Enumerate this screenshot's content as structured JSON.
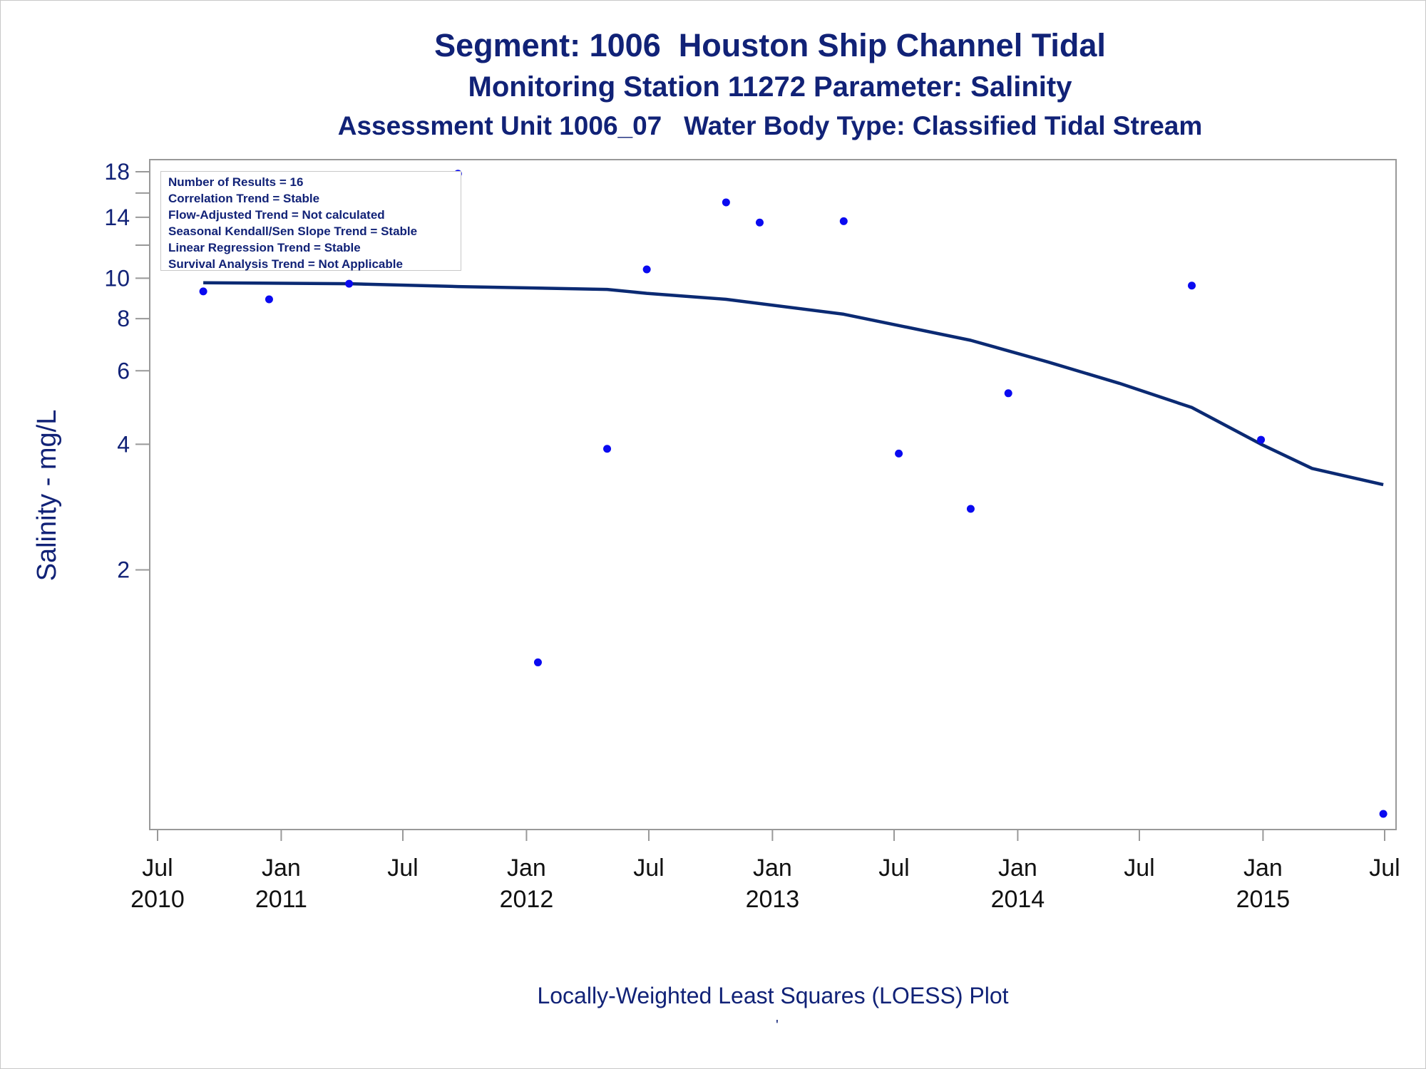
{
  "titles": {
    "line1": "Segment: 1006  Houston Ship Channel Tidal",
    "line2": "Monitoring Station 11272 Parameter: Salinity",
    "line3": "Assessment Unit 1006_07   Water Body Type: Classified Tidal Stream"
  },
  "stats_box": {
    "results": "Number of Results = 16",
    "correlation": "Correlation Trend = Stable",
    "flow_adjusted": "Flow-Adjusted Trend = Not calculated",
    "seasonal_kendall": "Seasonal Kendall/Sen Slope Trend = Stable",
    "linear_regression": "Linear Regression Trend = Stable",
    "survival": "Survival Analysis Trend = Not Applicable"
  },
  "footnote": "Locally-Weighted Least Squares (LOESS) Plot",
  "footnote_mark": "'",
  "chart_data": {
    "type": "scatter",
    "ylabel": "Salinity - mg/L",
    "yscale": "log",
    "ylim": [
      0.5,
      18.5
    ],
    "yticks": [
      2,
      4,
      6,
      8,
      10,
      14,
      18
    ],
    "yminor_ticks": [
      12,
      16
    ],
    "xlim": [
      "2010-07-01",
      "2015-07-01"
    ],
    "xticks": [
      {
        "date": "2010-07-01",
        "month": "Jul",
        "year": "2010"
      },
      {
        "date": "2011-01-01",
        "month": "Jan",
        "year": "2011"
      },
      {
        "date": "2011-07-01",
        "month": "Jul",
        "year": ""
      },
      {
        "date": "2012-01-01",
        "month": "Jan",
        "year": "2012"
      },
      {
        "date": "2012-07-01",
        "month": "Jul",
        "year": ""
      },
      {
        "date": "2013-01-01",
        "month": "Jan",
        "year": "2013"
      },
      {
        "date": "2013-07-01",
        "month": "Jul",
        "year": ""
      },
      {
        "date": "2014-01-01",
        "month": "Jan",
        "year": "2014"
      },
      {
        "date": "2014-07-01",
        "month": "Jul",
        "year": ""
      },
      {
        "date": "2015-01-01",
        "month": "Jan",
        "year": "2015"
      },
      {
        "date": "2015-07-01",
        "month": "Jul",
        "year": ""
      }
    ],
    "points": [
      {
        "x": "2010-09-07",
        "y": 9.3
      },
      {
        "x": "2010-12-14",
        "y": 8.9
      },
      {
        "x": "2011-04-12",
        "y": 9.7
      },
      {
        "x": "2011-09-21",
        "y": 17.8
      },
      {
        "x": "2012-01-18",
        "y": 1.2
      },
      {
        "x": "2012-04-30",
        "y": 3.9
      },
      {
        "x": "2012-06-28",
        "y": 10.5
      },
      {
        "x": "2012-10-24",
        "y": 15.2
      },
      {
        "x": "2012-12-13",
        "y": 13.6
      },
      {
        "x": "2013-04-17",
        "y": 13.7
      },
      {
        "x": "2013-07-08",
        "y": 3.8
      },
      {
        "x": "2013-10-23",
        "y": 2.8
      },
      {
        "x": "2013-12-18",
        "y": 5.3
      },
      {
        "x": "2014-09-17",
        "y": 9.6
      },
      {
        "x": "2014-12-29",
        "y": 4.1
      },
      {
        "x": "2015-06-29",
        "y": 0.52
      }
    ],
    "loess": [
      {
        "x": "2010-09-07",
        "y": 9.75
      },
      {
        "x": "2011-04-12",
        "y": 9.7
      },
      {
        "x": "2011-09-21",
        "y": 9.55
      },
      {
        "x": "2012-04-30",
        "y": 9.4
      },
      {
        "x": "2012-06-28",
        "y": 9.2
      },
      {
        "x": "2012-10-24",
        "y": 8.9
      },
      {
        "x": "2013-04-17",
        "y": 8.2
      },
      {
        "x": "2013-07-08",
        "y": 7.7
      },
      {
        "x": "2013-10-23",
        "y": 7.1
      },
      {
        "x": "2014-02-15",
        "y": 6.3
      },
      {
        "x": "2014-06-01",
        "y": 5.6
      },
      {
        "x": "2014-09-17",
        "y": 4.9
      },
      {
        "x": "2014-12-29",
        "y": 4.0
      },
      {
        "x": "2015-03-15",
        "y": 3.5
      },
      {
        "x": "2015-06-29",
        "y": 3.2
      }
    ],
    "colors": {
      "points": "#0a0af0",
      "loess": "#0b2a73",
      "axis": "#999999",
      "text": "#112277"
    }
  }
}
